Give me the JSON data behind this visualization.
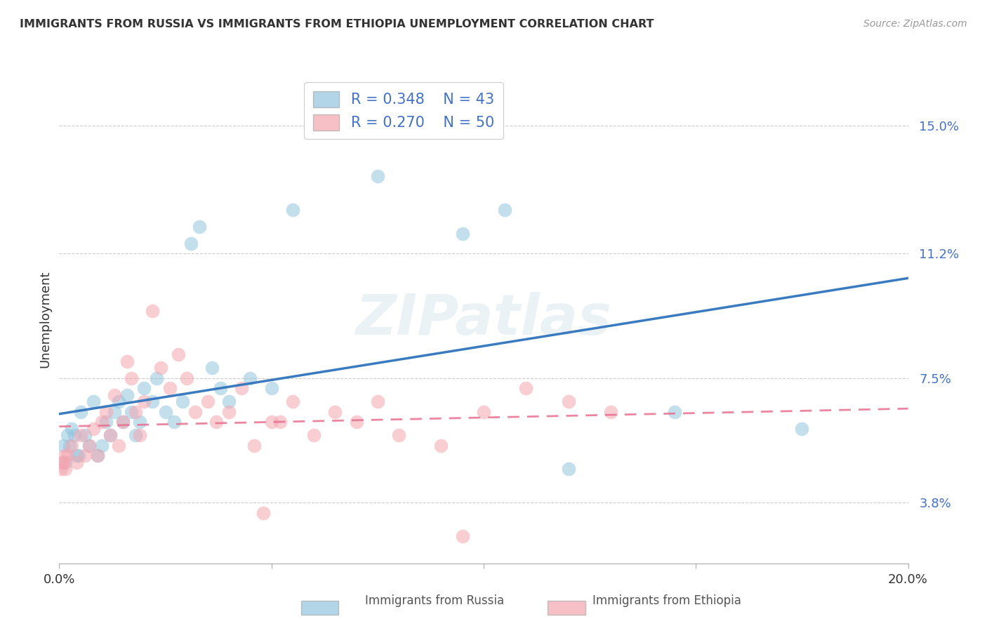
{
  "title": "IMMIGRANTS FROM RUSSIA VS IMMIGRANTS FROM ETHIOPIA UNEMPLOYMENT CORRELATION CHART",
  "source": "Source: ZipAtlas.com",
  "ylabel": "Unemployment",
  "yticks": [
    3.8,
    7.5,
    11.2,
    15.0
  ],
  "xlim": [
    0.0,
    20.0
  ],
  "ylim": [
    2.0,
    16.5
  ],
  "russia_color": "#92c5de",
  "ethiopia_color": "#f4a6b0",
  "russia_line_color": "#3a7bbf",
  "ethiopia_line_color": "#e87090",
  "legend_r_russia": "R = 0.348",
  "legend_n_russia": "N = 43",
  "legend_r_ethiopia": "R = 0.270",
  "legend_n_ethiopia": "N = 50",
  "russia_x": [
    0.1,
    0.2,
    0.3,
    0.4,
    0.5,
    0.6,
    0.7,
    0.8,
    0.9,
    1.0,
    1.1,
    1.2,
    1.3,
    1.4,
    1.5,
    1.6,
    1.7,
    1.8,
    1.9,
    2.0,
    2.2,
    2.3,
    2.5,
    2.7,
    2.9,
    3.1,
    3.3,
    3.6,
    3.8,
    4.0,
    4.5,
    5.0,
    5.5,
    7.5,
    9.5,
    10.5,
    12.0,
    14.5,
    17.5,
    0.15,
    0.25,
    0.35,
    0.45
  ],
  "russia_y": [
    5.5,
    5.8,
    6.0,
    5.2,
    6.5,
    5.8,
    5.5,
    6.8,
    5.2,
    5.5,
    6.2,
    5.8,
    6.5,
    6.8,
    6.2,
    7.0,
    6.5,
    5.8,
    6.2,
    7.2,
    6.8,
    7.5,
    6.5,
    6.2,
    6.8,
    11.5,
    12.0,
    7.8,
    7.2,
    6.8,
    7.5,
    7.2,
    12.5,
    13.5,
    11.8,
    12.5,
    4.8,
    6.5,
    6.0,
    5.0,
    5.5,
    5.8,
    5.2
  ],
  "ethiopia_x": [
    0.1,
    0.15,
    0.2,
    0.3,
    0.4,
    0.5,
    0.6,
    0.7,
    0.8,
    0.9,
    1.0,
    1.1,
    1.2,
    1.3,
    1.4,
    1.5,
    1.6,
    1.7,
    1.8,
    1.9,
    2.0,
    2.2,
    2.4,
    2.6,
    2.8,
    3.0,
    3.2,
    3.5,
    3.7,
    4.0,
    4.3,
    4.6,
    5.0,
    5.5,
    6.0,
    6.5,
    7.0,
    7.5,
    8.0,
    9.0,
    10.0,
    11.0,
    12.0,
    13.0,
    4.8,
    5.2,
    9.5,
    0.05,
    0.08,
    0.12
  ],
  "ethiopia_y": [
    5.0,
    4.8,
    5.2,
    5.5,
    5.0,
    5.8,
    5.2,
    5.5,
    6.0,
    5.2,
    6.2,
    6.5,
    5.8,
    7.0,
    5.5,
    6.2,
    8.0,
    7.5,
    6.5,
    5.8,
    6.8,
    9.5,
    7.8,
    7.2,
    8.2,
    7.5,
    6.5,
    6.8,
    6.2,
    6.5,
    7.2,
    5.5,
    6.2,
    6.8,
    5.8,
    6.5,
    6.2,
    6.8,
    5.8,
    5.5,
    6.5,
    7.2,
    6.8,
    6.5,
    3.5,
    6.2,
    2.8,
    4.8,
    5.0,
    5.2
  ]
}
